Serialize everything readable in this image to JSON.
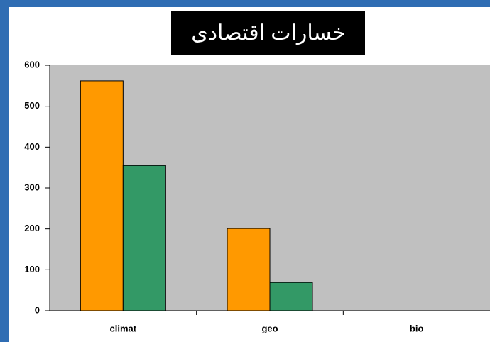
{
  "chart_data": {
    "type": "bar",
    "title": "خسارات اقتصادی",
    "categories": [
      "climat",
      "geo",
      "bio"
    ],
    "series": [
      {
        "color": "#ff9900",
        "values": [
          562,
          201,
          0
        ]
      },
      {
        "color": "#339966",
        "values": [
          355,
          69,
          0
        ]
      }
    ],
    "ylim": [
      0,
      600
    ],
    "yticks": [
      0,
      100,
      200,
      300,
      400,
      500,
      600
    ],
    "grid": false
  }
}
